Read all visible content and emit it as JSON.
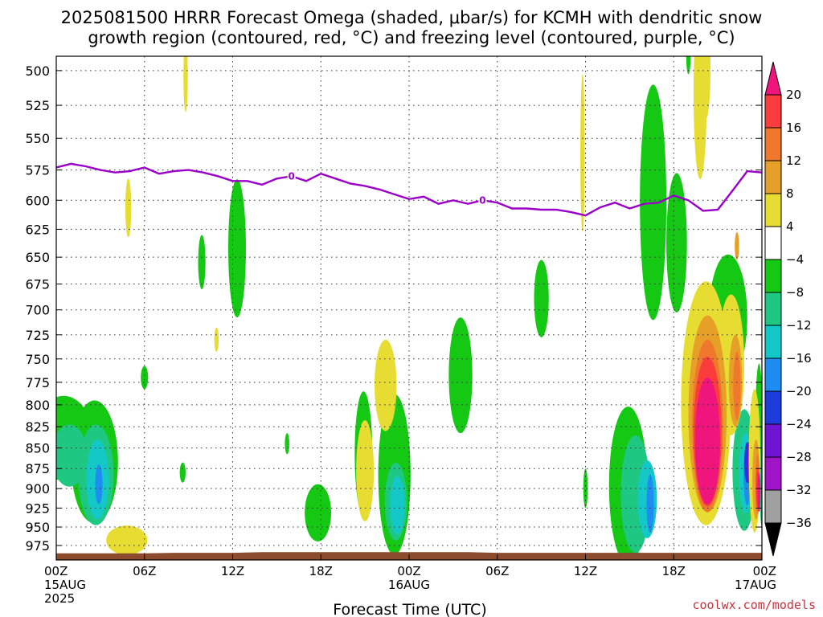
{
  "chart_data": {
    "type": "heatmap",
    "title_lines": [
      "2025081500 HRRR Forecast Omega (shaded, μbar/s) for KCMH with dendritic snow",
      "growth region (contoured, red, °C) and freezing level (contoured, purple, °C)"
    ],
    "xlabel": "Forecast Time (UTC)",
    "credit": "coolwx.com/models",
    "x_range_hours": [
      0,
      48
    ],
    "y_levels_hpa": [
      500,
      525,
      550,
      575,
      600,
      625,
      650,
      675,
      700,
      725,
      750,
      775,
      800,
      825,
      850,
      875,
      900,
      925,
      950,
      975
    ],
    "y_range_hpa": [
      490,
      995
    ],
    "y_scale": "log-pressure",
    "x_ticks": [
      {
        "hour": 0,
        "lines": [
          "00Z",
          "15AUG",
          "2025"
        ]
      },
      {
        "hour": 6,
        "lines": [
          "06Z"
        ]
      },
      {
        "hour": 12,
        "lines": [
          "12Z"
        ]
      },
      {
        "hour": 18,
        "lines": [
          "18Z"
        ]
      },
      {
        "hour": 24,
        "lines": [
          "00Z",
          "16AUG"
        ]
      },
      {
        "hour": 30,
        "lines": [
          "06Z"
        ]
      },
      {
        "hour": 36,
        "lines": [
          "12Z"
        ]
      },
      {
        "hour": 42,
        "lines": [
          "18Z"
        ]
      },
      {
        "hour": 48,
        "lines": [
          "00Z",
          "17AUG"
        ]
      }
    ],
    "grid": true,
    "colorbar": {
      "labels": [
        "20",
        "16",
        "12",
        "8",
        "4",
        "−4",
        "−8",
        "−12",
        "−16",
        "−20",
        "−24",
        "−28",
        "−32",
        "−36"
      ],
      "bins": [
        {
          "min": 20,
          "max": null,
          "color": "#f0147d"
        },
        {
          "min": 16,
          "max": 20,
          "color": "#fa3c3c"
        },
        {
          "min": 12,
          "max": 16,
          "color": "#f0782d"
        },
        {
          "min": 8,
          "max": 12,
          "color": "#e6a028"
        },
        {
          "min": 4,
          "max": 8,
          "color": "#e6dc32"
        },
        {
          "min": -4,
          "max": 4,
          "color": "#ffffff"
        },
        {
          "min": -8,
          "max": -4,
          "color": "#14c814"
        },
        {
          "min": -12,
          "max": -8,
          "color": "#1ec882"
        },
        {
          "min": -16,
          "max": -12,
          "color": "#14c8c8"
        },
        {
          "min": -20,
          "max": -16,
          "color": "#1e8cf0"
        },
        {
          "min": -24,
          "max": -20,
          "color": "#1e3cdc"
        },
        {
          "min": -28,
          "max": -24,
          "color": "#6e14d2"
        },
        {
          "min": -32,
          "max": -28,
          "color": "#a014c8"
        },
        {
          "min": -36,
          "max": -32,
          "color": "#a0a0a0"
        },
        {
          "min": null,
          "max": -36,
          "color": "#000000"
        }
      ]
    },
    "freezing_level": {
      "label": "0",
      "color": "#9b00c8",
      "points": [
        [
          0,
          573
        ],
        [
          1,
          570
        ],
        [
          2,
          572
        ],
        [
          3,
          575
        ],
        [
          4,
          577
        ],
        [
          5,
          576
        ],
        [
          6,
          573
        ],
        [
          7,
          578
        ],
        [
          8,
          576
        ],
        [
          9,
          575
        ],
        [
          10,
          577
        ],
        [
          11,
          580
        ],
        [
          12,
          584
        ],
        [
          13,
          584
        ],
        [
          14,
          587
        ],
        [
          15,
          582
        ],
        [
          16,
          580
        ],
        [
          17,
          584
        ],
        [
          18,
          578
        ],
        [
          19,
          582
        ],
        [
          20,
          586
        ],
        [
          21,
          588
        ],
        [
          22,
          591
        ],
        [
          23,
          595
        ],
        [
          24,
          599
        ],
        [
          25,
          597
        ],
        [
          26,
          603
        ],
        [
          27,
          600
        ],
        [
          28,
          603
        ],
        [
          29,
          600
        ],
        [
          30,
          602
        ],
        [
          31,
          607
        ],
        [
          32,
          607
        ],
        [
          33,
          608
        ],
        [
          34,
          608
        ],
        [
          35,
          610
        ],
        [
          36,
          613
        ],
        [
          37,
          606
        ],
        [
          38,
          602
        ],
        [
          39,
          607
        ],
        [
          40,
          603
        ],
        [
          41,
          602
        ],
        [
          42,
          596
        ],
        [
          43,
          600
        ],
        [
          44,
          609
        ],
        [
          45,
          608
        ],
        [
          46,
          592
        ],
        [
          47,
          576
        ],
        [
          48,
          577
        ]
      ],
      "label_positions_hour": [
        16,
        29
      ]
    },
    "surface_terrain_color": "#8c4b2d",
    "series": [
      {
        "name": "green",
        "color": "#14c814",
        "cells": [
          [
            0.5,
            4,
            840,
            4
          ],
          [
            2.6,
            3.2,
            870,
            6
          ],
          [
            6,
            0.5,
            770,
            1
          ],
          [
            8.6,
            0.4,
            880,
            1
          ],
          [
            9.9,
            0.5,
            655,
            2
          ],
          [
            12.3,
            1.2,
            645,
            5
          ],
          [
            15.7,
            0.3,
            845,
            1
          ],
          [
            17.8,
            1.8,
            932,
            3
          ],
          [
            20.9,
            1.2,
            860,
            6
          ],
          [
            23,
            2.2,
            888,
            8
          ],
          [
            27.5,
            1.6,
            770,
            5
          ],
          [
            33,
            1,
            690,
            3
          ],
          [
            36,
            0.3,
            900,
            2
          ],
          [
            38.9,
            2.6,
            902,
            8
          ],
          [
            40.6,
            1.8,
            610,
            8
          ],
          [
            42.2,
            1.4,
            640,
            5
          ],
          [
            45.7,
            2.6,
            710,
            5
          ],
          [
            47.8,
            0.5,
            830,
            6
          ],
          [
            43,
            0.3,
            490,
            1
          ]
        ]
      },
      {
        "name": "teal",
        "color": "#1ec882",
        "cells": [
          [
            0.9,
            2.4,
            860,
            3
          ],
          [
            2.7,
            2.4,
            885,
            5
          ],
          [
            23.1,
            1.5,
            918,
            4
          ],
          [
            39.4,
            2,
            910,
            6
          ],
          [
            46.8,
            1.6,
            880,
            6
          ],
          [
            48,
            0.3,
            900,
            4
          ]
        ]
      },
      {
        "name": "cyan",
        "color": "#14c8c8",
        "cells": [
          [
            2.8,
            1.5,
            890,
            4
          ],
          [
            23.2,
            1,
            922,
            3
          ],
          [
            40.2,
            1.3,
            915,
            4
          ],
          [
            46.9,
            0.9,
            882,
            4
          ]
        ]
      },
      {
        "name": "lightblue",
        "color": "#1e8cf0",
        "cells": [
          [
            2.9,
            0.5,
            895,
            2
          ],
          [
            40.4,
            0.5,
            920,
            3
          ],
          [
            47,
            0.5,
            884,
            3
          ]
        ]
      },
      {
        "name": "blue",
        "color": "#1e3cdc",
        "cells": [
          [
            47.0,
            0.4,
            868,
            2
          ]
        ]
      },
      {
        "name": "violet",
        "color": "#6e14d2",
        "cells": [
          [
            47.1,
            0.3,
            868,
            2
          ]
        ]
      },
      {
        "name": "yellow",
        "color": "#e6dc32",
        "cells": [
          [
            4.8,
            2.8,
            968,
            1.6
          ],
          [
            8.8,
            0.3,
            505,
            2
          ],
          [
            4.9,
            0.4,
            607,
            2
          ],
          [
            10.9,
            0.3,
            730,
            1
          ],
          [
            21,
            1.2,
            880,
            5
          ],
          [
            22.4,
            1.5,
            780,
            4
          ],
          [
            35.8,
            0.3,
            565,
            5
          ],
          [
            43.8,
            0.9,
            520,
            5
          ],
          [
            44.2,
            0.6,
            500,
            2.8
          ],
          [
            44.2,
            3.4,
            810,
            11
          ],
          [
            45.9,
            1.8,
            760,
            6
          ],
          [
            47.5,
            0.8,
            870,
            7
          ]
        ]
      },
      {
        "name": "gold",
        "color": "#e6a028",
        "cells": [
          [
            44.3,
            2.6,
            818,
            9
          ],
          [
            46.2,
            0.9,
            775,
            4
          ],
          [
            47.6,
            0.5,
            890,
            4
          ],
          [
            46.3,
            0.3,
            640,
            1
          ]
        ]
      },
      {
        "name": "orange",
        "color": "#f0782d",
        "cells": [
          [
            44.3,
            2.1,
            830,
            8
          ],
          [
            46.3,
            0.5,
            780,
            3
          ],
          [
            47.7,
            0.3,
            895,
            3
          ]
        ]
      },
      {
        "name": "red",
        "color": "#fa3c3c",
        "cells": [
          [
            44.3,
            1.9,
            835,
            7
          ],
          [
            47.7,
            0.2,
            900,
            2
          ]
        ]
      },
      {
        "name": "magenta",
        "color": "#f0147d",
        "cells": [
          [
            44.3,
            1.7,
            845,
            6
          ],
          [
            47.8,
            0.15,
            905,
            2
          ]
        ]
      }
    ]
  }
}
